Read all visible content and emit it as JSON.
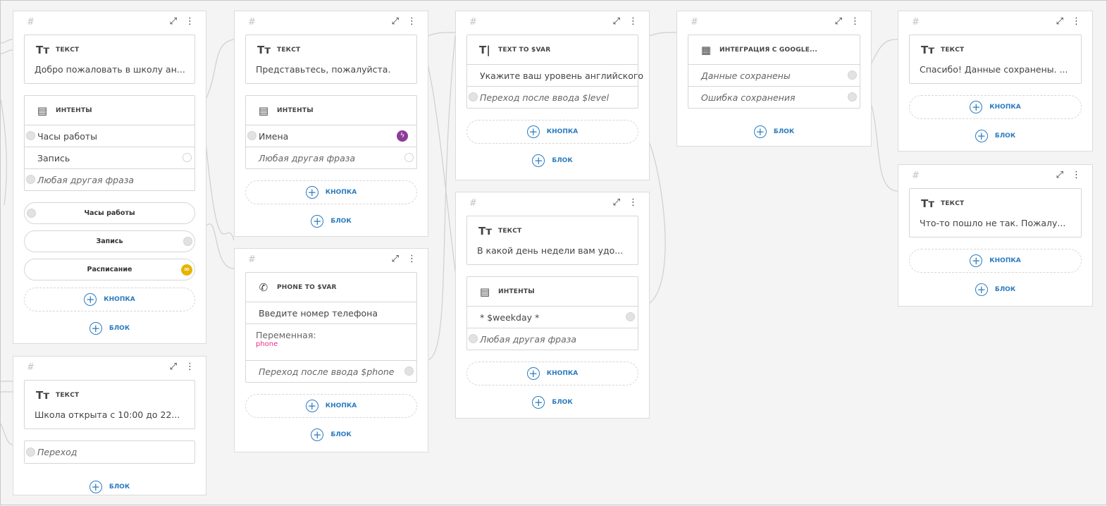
{
  "common": {
    "add_button": "КНОПКА",
    "add_block": "БЛОК",
    "hash": "#"
  },
  "colors": {
    "accent": "#2b7bbf",
    "variable": "#e8318a",
    "intent_badge": "#8e3a9a",
    "link_badge": "#e6b400"
  },
  "cards": [
    {
      "blocks": [
        {
          "type": "text",
          "icon": "text-icon",
          "title": "ТЕКСТ",
          "text": "Добро пожаловать в школу ан..."
        },
        {
          "type": "intents",
          "icon": "intents-icon",
          "title": "ИНТЕНТЫ",
          "rows": [
            {
              "label": "Часы работы",
              "port": "l"
            },
            {
              "label": "Запись",
              "port": "r-empty"
            },
            {
              "label": "Любая другая фраза",
              "italic": true,
              "port": "l"
            }
          ]
        }
      ],
      "buttons": [
        {
          "label": "Часы работы",
          "port": "l"
        },
        {
          "label": "Запись",
          "port": "r"
        },
        {
          "label": "Расписание",
          "badge": "link-icon"
        }
      ],
      "has_add_button": true
    },
    {
      "blocks": [
        {
          "type": "text",
          "icon": "text-icon",
          "title": "ТЕКСТ",
          "text": "Школа открыта с 10:00 до 22..."
        },
        {
          "type": "rows",
          "rows": [
            {
              "label": "Переход",
              "italic": true,
              "port": "l"
            }
          ]
        }
      ],
      "buttons": [],
      "has_add_button": false
    },
    {
      "blocks": [
        {
          "type": "text",
          "icon": "text-icon",
          "title": "ТЕКСТ",
          "text": "Представьтесь, пожалуйста."
        },
        {
          "type": "intents",
          "icon": "intents-icon",
          "title": "ИНТЕНТЫ",
          "rows": [
            {
              "label": "Имена",
              "port": "l",
              "badge": "lightning-icon"
            },
            {
              "label": "Любая другая фраза",
              "italic": true,
              "port": "r-empty"
            }
          ]
        }
      ],
      "buttons": [],
      "has_add_button": true
    },
    {
      "blocks": [
        {
          "type": "phone",
          "icon": "phone-icon",
          "title": "PHONE TO $VAR",
          "rows": [
            {
              "label": "Введите номер телефона"
            }
          ],
          "variable_label": "Переменная:",
          "variable": "phone",
          "after": {
            "label": "Переход после ввода $phone",
            "italic": true,
            "port": "r"
          }
        }
      ],
      "buttons": [],
      "has_add_button": true
    },
    {
      "blocks": [
        {
          "type": "intents",
          "icon": "text-cursor-icon",
          "title": "TEXT TO $VAR",
          "rows": [
            {
              "label": "Укажите ваш уровень английского"
            },
            {
              "label": "Переход после ввода $level",
              "italic": true,
              "port": "l"
            }
          ]
        }
      ],
      "buttons": [],
      "has_add_button": true
    },
    {
      "blocks": [
        {
          "type": "text",
          "icon": "text-icon",
          "title": "ТЕКСТ",
          "text": "В какой день недели вам удо..."
        },
        {
          "type": "intents",
          "icon": "intents-icon",
          "title": "ИНТЕНТЫ",
          "rows": [
            {
              "label": "* $weekday *",
              "port": "r"
            },
            {
              "label": "Любая другая фраза",
              "italic": true,
              "port": "l"
            }
          ]
        }
      ],
      "buttons": [],
      "has_add_button": true
    },
    {
      "blocks": [
        {
          "type": "intents",
          "icon": "table-icon",
          "title": "ИНТЕГРАЦИЯ С GOOGLE...",
          "rows": [
            {
              "label": "Данные сохранены",
              "italic": true,
              "port": "r"
            },
            {
              "label": "Ошибка сохранения",
              "italic": true,
              "port": "r"
            }
          ]
        }
      ],
      "buttons": [],
      "has_add_button": false
    },
    {
      "blocks": [
        {
          "type": "text",
          "icon": "text-icon",
          "title": "ТЕКСТ",
          "text": "Спасибо! Данные сохранены. ..."
        }
      ],
      "buttons": [],
      "has_add_button": true
    },
    {
      "blocks": [
        {
          "type": "text",
          "icon": "text-icon",
          "title": "ТЕКСТ",
          "text": "Что-то пошло не так. Пожалу..."
        }
      ],
      "buttons": [],
      "has_add_button": true
    }
  ]
}
